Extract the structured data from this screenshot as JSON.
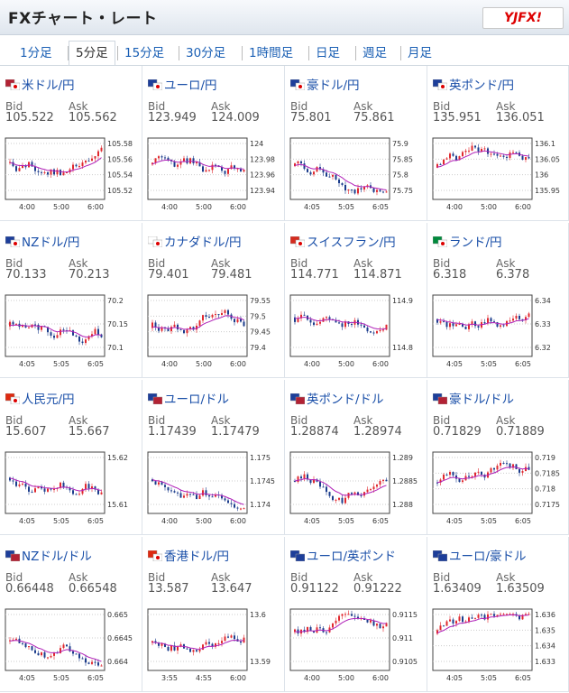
{
  "header": {
    "title": "FXチャート・レート",
    "logo": "YJFX!"
  },
  "tabs": [
    {
      "label": "1分足"
    },
    {
      "label": "5分足",
      "active": true
    },
    {
      "label": "15分足"
    },
    {
      "label": "30分足"
    },
    {
      "label": "1時間足"
    },
    {
      "label": "日足"
    },
    {
      "label": "週足"
    },
    {
      "label": "月足"
    }
  ],
  "bid_label": "Bid",
  "ask_label": "Ask",
  "pairs": [
    {
      "name": "米ドル/円",
      "flag": "flag-us-jp",
      "bid": "105.522",
      "ask": "105.562",
      "y_ticks": [
        "105.58",
        "105.56",
        "105.54",
        "105.52"
      ],
      "x_ticks": [
        "4:00",
        "5:00",
        "6:00"
      ]
    },
    {
      "name": "ユーロ/円",
      "flag": "flag-eu-jp",
      "bid": "123.949",
      "ask": "124.009",
      "y_ticks": [
        "124",
        "123.98",
        "123.96",
        "123.94"
      ],
      "x_ticks": [
        "4:00",
        "5:00",
        "6:00"
      ]
    },
    {
      "name": "豪ドル/円",
      "flag": "flag-au-jp",
      "bid": "75.801",
      "ask": "75.861",
      "y_ticks": [
        "75.9",
        "75.85",
        "75.8",
        "75.75"
      ],
      "x_ticks": [
        "4:05",
        "5:05",
        "6:05"
      ]
    },
    {
      "name": "英ポンド/円",
      "flag": "flag-gb-jp",
      "bid": "135.951",
      "ask": "136.051",
      "y_ticks": [
        "136.1",
        "136.05",
        "136",
        "135.95"
      ],
      "x_ticks": [
        "4:00",
        "5:00",
        "6:00"
      ]
    },
    {
      "name": "NZドル/円",
      "flag": "flag-nz-jp",
      "bid": "70.133",
      "ask": "70.213",
      "y_ticks": [
        "70.2",
        "70.15",
        "70.1"
      ],
      "x_ticks": [
        "4:05",
        "5:05",
        "6:05"
      ]
    },
    {
      "name": "カナダドル/円",
      "flag": "flag-ca-jp",
      "bid": "79.401",
      "ask": "79.481",
      "y_ticks": [
        "79.55",
        "79.5",
        "79.45",
        "79.4"
      ],
      "x_ticks": [
        "4:00",
        "5:00",
        "6:00"
      ]
    },
    {
      "name": "スイスフラン/円",
      "flag": "flag-ch-jp",
      "bid": "114.771",
      "ask": "114.871",
      "y_ticks": [
        "114.9",
        "114.8"
      ],
      "x_ticks": [
        "4:00",
        "5:00",
        "6:00"
      ]
    },
    {
      "name": "ランド/円",
      "flag": "flag-za-jp",
      "bid": "6.318",
      "ask": "6.378",
      "y_ticks": [
        "6.34",
        "6.33",
        "6.32"
      ],
      "x_ticks": [
        "4:05",
        "5:05",
        "6:05"
      ]
    },
    {
      "name": "人民元/円",
      "flag": "flag-cn-jp",
      "bid": "15.607",
      "ask": "15.667",
      "y_ticks": [
        "15.62",
        "15.61"
      ],
      "x_ticks": [
        "4:05",
        "5:05",
        "6:05"
      ]
    },
    {
      "name": "ユーロ/ドル",
      "flag": "flag-eu-us",
      "bid": "1.17439",
      "ask": "1.17479",
      "y_ticks": [
        "1.175",
        "1.1745",
        "1.174"
      ],
      "x_ticks": [
        "4:00",
        "5:00",
        "6:00"
      ]
    },
    {
      "name": "英ポンド/ドル",
      "flag": "flag-gb-us",
      "bid": "1.28874",
      "ask": "1.28974",
      "y_ticks": [
        "1.289",
        "1.2885",
        "1.288"
      ],
      "x_ticks": [
        "4:05",
        "5:05",
        "6:05"
      ]
    },
    {
      "name": "豪ドル/ドル",
      "flag": "flag-au-us",
      "bid": "0.71829",
      "ask": "0.71889",
      "y_ticks": [
        "0.719",
        "0.7185",
        "0.718",
        "0.7175"
      ],
      "x_ticks": [
        "4:05",
        "5:05",
        "6:05"
      ]
    },
    {
      "name": "NZドル/ドル",
      "flag": "flag-nz-us",
      "bid": "0.66448",
      "ask": "0.66548",
      "y_ticks": [
        "0.665",
        "0.6645",
        "0.664"
      ],
      "x_ticks": [
        "4:05",
        "5:05",
        "6:05"
      ]
    },
    {
      "name": "香港ドル/円",
      "flag": "flag-hk-jp",
      "bid": "13.587",
      "ask": "13.647",
      "y_ticks": [
        "13.6",
        "13.59"
      ],
      "x_ticks": [
        "3:55",
        "4:55",
        "6:00"
      ]
    },
    {
      "name": "ユーロ/英ポンド",
      "flag": "flag-eu-gb",
      "bid": "0.91122",
      "ask": "0.91222",
      "y_ticks": [
        "0.9115",
        "0.911",
        "0.9105"
      ],
      "x_ticks": [
        "4:00",
        "5:00",
        "6:00"
      ]
    },
    {
      "name": "ユーロ/豪ドル",
      "flag": "flag-eu-au",
      "bid": "1.63409",
      "ask": "1.63509",
      "y_ticks": [
        "1.636",
        "1.635",
        "1.634",
        "1.633"
      ],
      "x_ticks": [
        "4:05",
        "5:05",
        "6:05"
      ]
    }
  ],
  "colors": {
    "up": "#e0282e",
    "down": "#1b3c8c",
    "ma": "#b020b8",
    "link": "#1a4fa8"
  }
}
